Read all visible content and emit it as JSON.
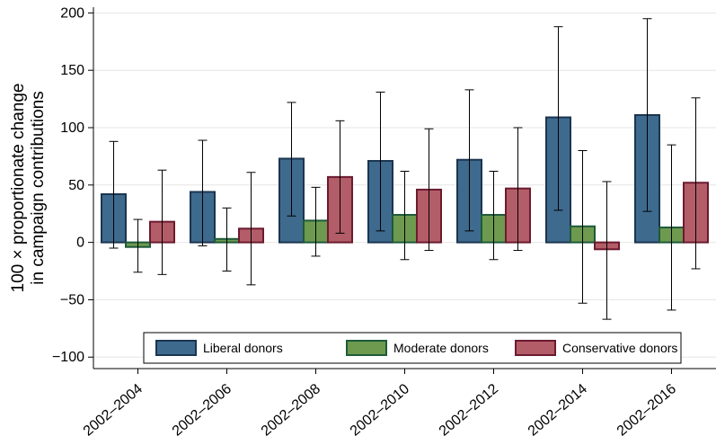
{
  "chart_data": {
    "type": "bar",
    "ylabel_lines": [
      "100 × proportionate change",
      "in campaign contributions"
    ],
    "categories": [
      "2002–2004",
      "2002–2006",
      "2002–2008",
      "2002–2010",
      "2002–2012",
      "2002–2014",
      "2002–2016"
    ],
    "ylim": [
      -110,
      205
    ],
    "yticks": [
      200,
      150,
      100,
      50,
      0,
      -50,
      -100
    ],
    "ytick_labels": [
      "200",
      "150",
      "100",
      "50",
      "0",
      "−50",
      "−100"
    ],
    "grid": true,
    "legend_position": "bottom-inside",
    "series": [
      {
        "name": "Liberal donors",
        "fill": "#3e6a8e",
        "stroke": "#1b3550",
        "values": [
          42,
          44,
          73,
          71,
          72,
          109,
          111
        ],
        "ci_low": [
          -5,
          -3,
          23,
          10,
          10,
          28,
          27
        ],
        "ci_high": [
          88,
          89,
          122,
          131,
          133,
          188,
          195
        ]
      },
      {
        "name": "Moderate donors",
        "fill": "#6e9a50",
        "stroke": "#1d5a3a",
        "values": [
          -4,
          3,
          19,
          24,
          24,
          14,
          13
        ],
        "ci_low": [
          -26,
          -25,
          -12,
          -15,
          -15,
          -53,
          -59
        ],
        "ci_high": [
          20,
          30,
          48,
          62,
          62,
          80,
          85
        ]
      },
      {
        "name": "Conservative donors",
        "fill": "#b35d68",
        "stroke": "#6b1a2f",
        "values": [
          18,
          12,
          57,
          46,
          47,
          -6,
          52
        ],
        "ci_low": [
          -28,
          -37,
          8,
          -7,
          -7,
          -67,
          -23
        ],
        "ci_high": [
          63,
          61,
          106,
          99,
          100,
          53,
          126
        ]
      }
    ]
  }
}
